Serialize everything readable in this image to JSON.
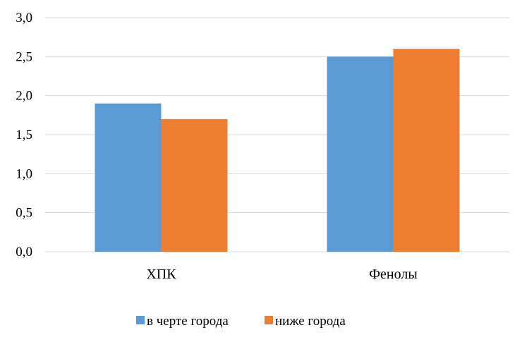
{
  "chart_data": {
    "type": "bar",
    "title": "",
    "xlabel": "",
    "ylabel": "",
    "categories": [
      "ХПК",
      "Фенолы"
    ],
    "series": [
      {
        "name": "в черте города",
        "values": [
          1.9,
          2.5
        ],
        "color": "#5b9bd5"
      },
      {
        "name": "ниже города",
        "values": [
          1.7,
          2.6
        ],
        "color": "#ed7d31"
      }
    ],
    "ylim": [
      0,
      3.0
    ],
    "yticks": [
      {
        "value": 0,
        "label": "0,0"
      },
      {
        "value": 0.5,
        "label": "0,5"
      },
      {
        "value": 1.0,
        "label": "1,0"
      },
      {
        "value": 1.5,
        "label": "1,5"
      },
      {
        "value": 2.0,
        "label": "2,0"
      },
      {
        "value": 2.5,
        "label": "2,5"
      },
      {
        "value": 3.0,
        "label": "3,0"
      }
    ],
    "grid": true,
    "gridColor": "#d9d9d9",
    "legend_position": "bottom"
  }
}
